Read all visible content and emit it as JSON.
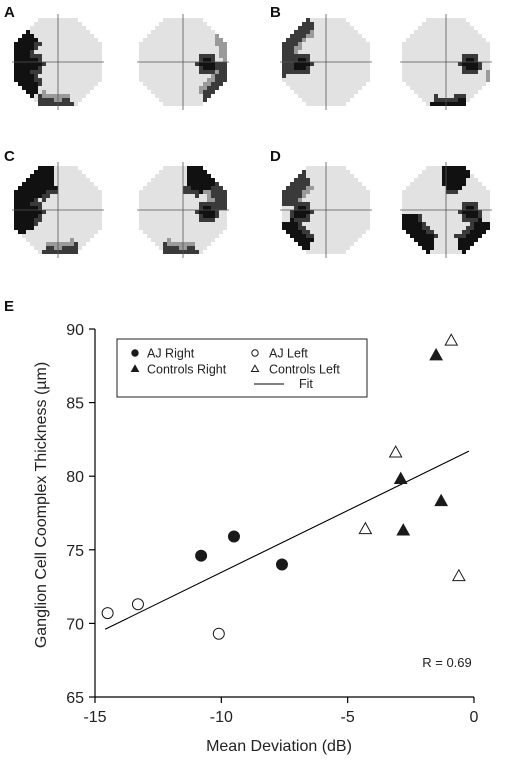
{
  "panels": {
    "a": {
      "letter": "A"
    },
    "b": {
      "letter": "B"
    },
    "c": {
      "letter": "C"
    },
    "d": {
      "letter": "D"
    },
    "e": {
      "letter": "E"
    }
  },
  "colors": {
    "light": "#e2e2e2",
    "mid": "#9a9a9a",
    "dark": "#3a3a3a",
    "black": "#111111",
    "axis": "#555555"
  },
  "chart_data": {
    "type": "scatter",
    "xlabel": "Mean Deviation (dB)",
    "ylabel": "Ganglion Cell Coomplex Thickness (µm)",
    "xlim": [
      -15,
      0
    ],
    "ylim": [
      65,
      90
    ],
    "xticks": [
      -15,
      -10,
      -5,
      0
    ],
    "yticks": [
      65,
      70,
      75,
      80,
      85,
      90
    ],
    "legend_position": "top-left",
    "annotation": "R = 0.69",
    "series": [
      {
        "name": "AJ Right",
        "marker": "filled-circle",
        "points": [
          [
            -10.8,
            74.6
          ],
          [
            -9.5,
            75.9
          ],
          [
            -7.6,
            74.0
          ]
        ]
      },
      {
        "name": "AJ  Left",
        "marker": "open-circle",
        "points": [
          [
            -14.5,
            70.7
          ],
          [
            -13.3,
            71.3
          ],
          [
            -10.1,
            69.3
          ]
        ]
      },
      {
        "name": "Controls Right",
        "marker": "filled-triangle",
        "points": [
          [
            -2.9,
            79.8
          ],
          [
            -2.8,
            76.3
          ],
          [
            -1.5,
            88.2
          ],
          [
            -1.3,
            78.3
          ]
        ]
      },
      {
        "name": "Controls Left",
        "marker": "open-triangle",
        "points": [
          [
            -4.3,
            76.4
          ],
          [
            -3.1,
            81.6
          ],
          [
            -0.9,
            89.2
          ],
          [
            -0.6,
            73.2
          ]
        ]
      }
    ],
    "fit": {
      "name": "Fit",
      "x": [
        -14.6,
        -0.2
      ],
      "y": [
        69.6,
        81.7
      ]
    }
  }
}
